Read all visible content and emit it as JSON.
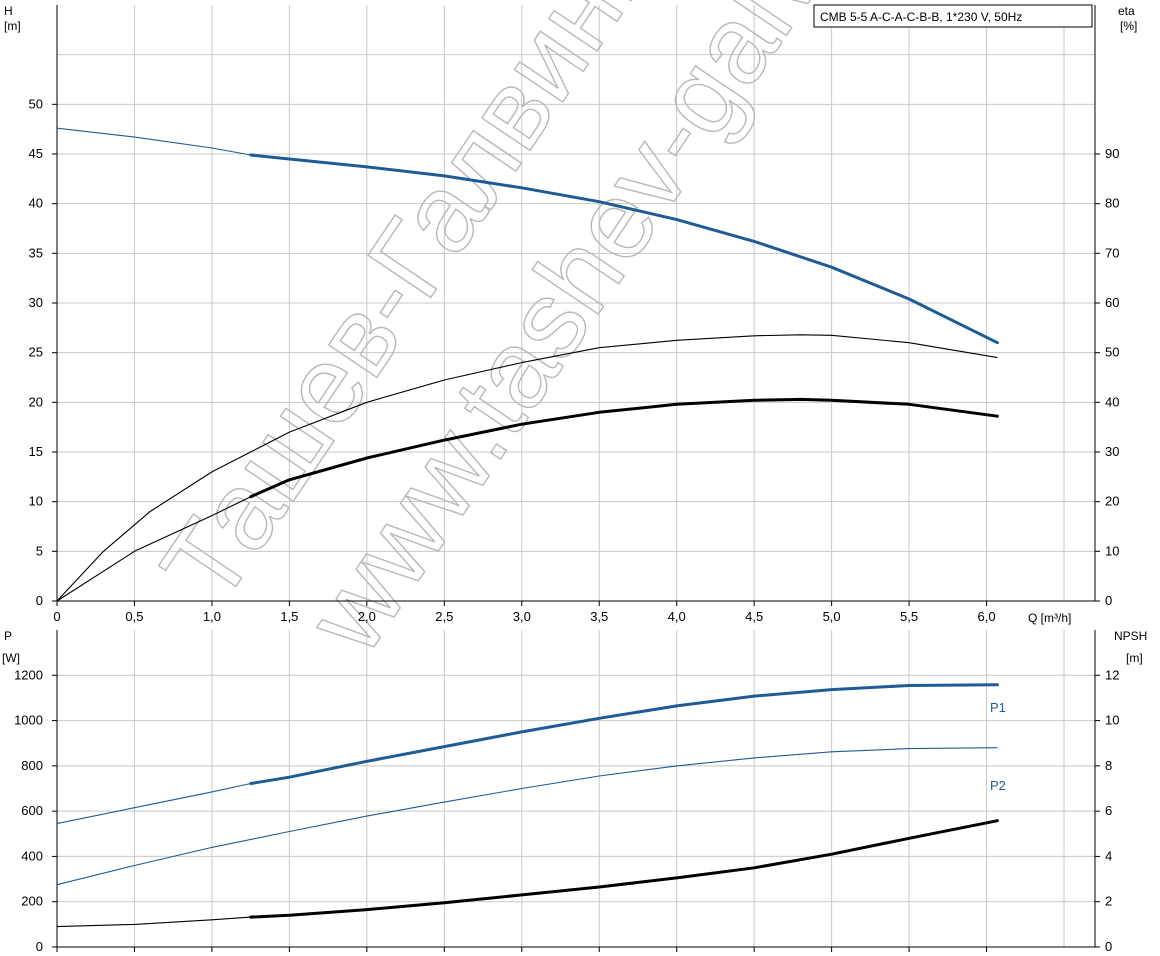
{
  "title_box": "CMB 5-5 A-C-A-C-B-B, 1*230 V, 50Hz",
  "watermark": [
    "Ташев-Галвинг",
    "www.tashev-galving"
  ],
  "colors": {
    "blue": "#1f5b94",
    "black": "#000000",
    "grid": "#c8c8c8",
    "axis": "#000000"
  },
  "chart_data": [
    {
      "type": "line",
      "name": "head-efficiency",
      "xlabel": "Q [m³/h]",
      "ylabel": [
        "H",
        "[m]"
      ],
      "y2label": [
        "eta",
        "[%]"
      ],
      "xlim": [
        0,
        6.7
      ],
      "ylim": [
        0,
        60
      ],
      "y2lim": [
        0,
        120
      ],
      "x_ticks": [
        "0",
        "0,5",
        "1,0",
        "1,5",
        "2,0",
        "2,5",
        "3,0",
        "3,5",
        "4,0",
        "4,5",
        "5,0",
        "5,5",
        "6,0"
      ],
      "x_tick_values": [
        0,
        0.5,
        1.0,
        1.5,
        2.0,
        2.5,
        3.0,
        3.5,
        4.0,
        4.5,
        5.0,
        5.5,
        6.0
      ],
      "y_ticks": [
        "0",
        "5",
        "10",
        "15",
        "20",
        "25",
        "30",
        "35",
        "40",
        "45",
        "50"
      ],
      "y_tick_values": [
        0,
        5,
        10,
        15,
        20,
        25,
        30,
        35,
        40,
        45,
        50
      ],
      "y2_ticks": [
        "0",
        "10",
        "20",
        "30",
        "40",
        "50",
        "60",
        "70",
        "80",
        "90"
      ],
      "y2_tick_values": [
        0,
        10,
        20,
        30,
        40,
        50,
        60,
        70,
        80,
        90
      ],
      "series": [
        {
          "key": "H",
          "axis": "left",
          "color": "#1f5b94",
          "thin": [
            [
              0,
              47.6
            ],
            [
              0.5,
              46.7
            ],
            [
              1.0,
              45.6
            ],
            [
              1.25,
              44.9
            ]
          ],
          "thick": [
            [
              1.25,
              44.9
            ],
            [
              1.5,
              44.5
            ],
            [
              2.0,
              43.7
            ],
            [
              2.5,
              42.8
            ],
            [
              3.0,
              41.6
            ],
            [
              3.5,
              40.2
            ],
            [
              4.0,
              38.4
            ],
            [
              4.5,
              36.2
            ],
            [
              5.0,
              33.6
            ],
            [
              5.5,
              30.4
            ],
            [
              6.07,
              26.0
            ]
          ]
        },
        {
          "key": "eta",
          "axis": "right",
          "color": "#000000",
          "thin": [
            [
              0,
              0
            ],
            [
              0.3,
              10
            ],
            [
              0.6,
              18
            ],
            [
              1.0,
              26
            ],
            [
              1.5,
              34
            ],
            [
              2.0,
              40
            ],
            [
              2.5,
              44.5
            ],
            [
              3.0,
              48
            ],
            [
              3.5,
              51
            ],
            [
              4.0,
              52.5
            ],
            [
              4.5,
              53.4
            ],
            [
              4.8,
              53.6
            ],
            [
              5.0,
              53.5
            ],
            [
              5.5,
              52
            ],
            [
              6.07,
              49
            ]
          ],
          "thick": []
        },
        {
          "key": "eta-h",
          "axis": "left",
          "color": "#000000",
          "thin": [
            [
              0,
              0
            ],
            [
              0.5,
              5
            ],
            [
              1.0,
              8.6
            ],
            [
              1.25,
              10.5
            ]
          ],
          "thick": [
            [
              1.25,
              10.5
            ],
            [
              1.5,
              12.2
            ],
            [
              2.0,
              14.4
            ],
            [
              2.5,
              16.2
            ],
            [
              3.0,
              17.8
            ],
            [
              3.5,
              19
            ],
            [
              4.0,
              19.8
            ],
            [
              4.5,
              20.2
            ],
            [
              4.8,
              20.3
            ],
            [
              5.0,
              20.2
            ],
            [
              5.5,
              19.8
            ],
            [
              6.07,
              18.6
            ]
          ]
        }
      ]
    },
    {
      "type": "line",
      "name": "power-npsh",
      "ylabel": [
        "P",
        "[W]"
      ],
      "y2label": [
        "NPSH",
        "[m]"
      ],
      "xlim": [
        0,
        6.7
      ],
      "ylim": [
        0,
        1400
      ],
      "y2lim": [
        0,
        14
      ],
      "y_ticks": [
        "0",
        "200",
        "400",
        "600",
        "800",
        "1000",
        "1200"
      ],
      "y_tick_values": [
        0,
        200,
        400,
        600,
        800,
        1000,
        1200
      ],
      "y2_ticks": [
        "0",
        "2",
        "4",
        "6",
        "8",
        "10",
        "12"
      ],
      "y2_tick_values": [
        0,
        2,
        4,
        6,
        8,
        10,
        12
      ],
      "series": [
        {
          "key": "P1",
          "name": "P1",
          "axis": "left",
          "color": "#1f5b94",
          "thin": [
            [
              0,
              545
            ],
            [
              0.5,
              615
            ],
            [
              1.0,
              685
            ],
            [
              1.25,
              722
            ]
          ],
          "thick": [
            [
              1.25,
              722
            ],
            [
              1.5,
              750
            ],
            [
              2.0,
              820
            ],
            [
              2.5,
              885
            ],
            [
              3.0,
              950
            ],
            [
              3.5,
              1010
            ],
            [
              4.0,
              1065
            ],
            [
              4.5,
              1108
            ],
            [
              5.0,
              1137
            ],
            [
              5.5,
              1155
            ],
            [
              6.07,
              1158
            ]
          ]
        },
        {
          "key": "P2",
          "name": "P2",
          "axis": "left",
          "color": "#1f5b94",
          "thin": [
            [
              0,
              275
            ],
            [
              0.5,
              360
            ],
            [
              1.0,
              440
            ],
            [
              1.5,
              510
            ],
            [
              2.0,
              578
            ],
            [
              2.5,
              640
            ],
            [
              3.0,
              700
            ],
            [
              3.5,
              755
            ],
            [
              4.0,
              800
            ],
            [
              4.5,
              835
            ],
            [
              5.0,
              862
            ],
            [
              5.5,
              876
            ],
            [
              6.07,
              880
            ]
          ],
          "thick": []
        },
        {
          "key": "NPSH",
          "axis": "right",
          "color": "#000000",
          "thin": [
            [
              0,
              0.9
            ],
            [
              0.5,
              1.0
            ],
            [
              1.0,
              1.2
            ],
            [
              1.25,
              1.32
            ]
          ],
          "thick": [
            [
              1.25,
              1.32
            ],
            [
              1.5,
              1.4
            ],
            [
              2.0,
              1.65
            ],
            [
              2.5,
              1.95
            ],
            [
              3.0,
              2.3
            ],
            [
              3.5,
              2.65
            ],
            [
              4.0,
              3.05
            ],
            [
              4.5,
              3.5
            ],
            [
              5.0,
              4.1
            ],
            [
              5.5,
              4.8
            ],
            [
              6.07,
              5.58
            ]
          ]
        }
      ]
    }
  ]
}
